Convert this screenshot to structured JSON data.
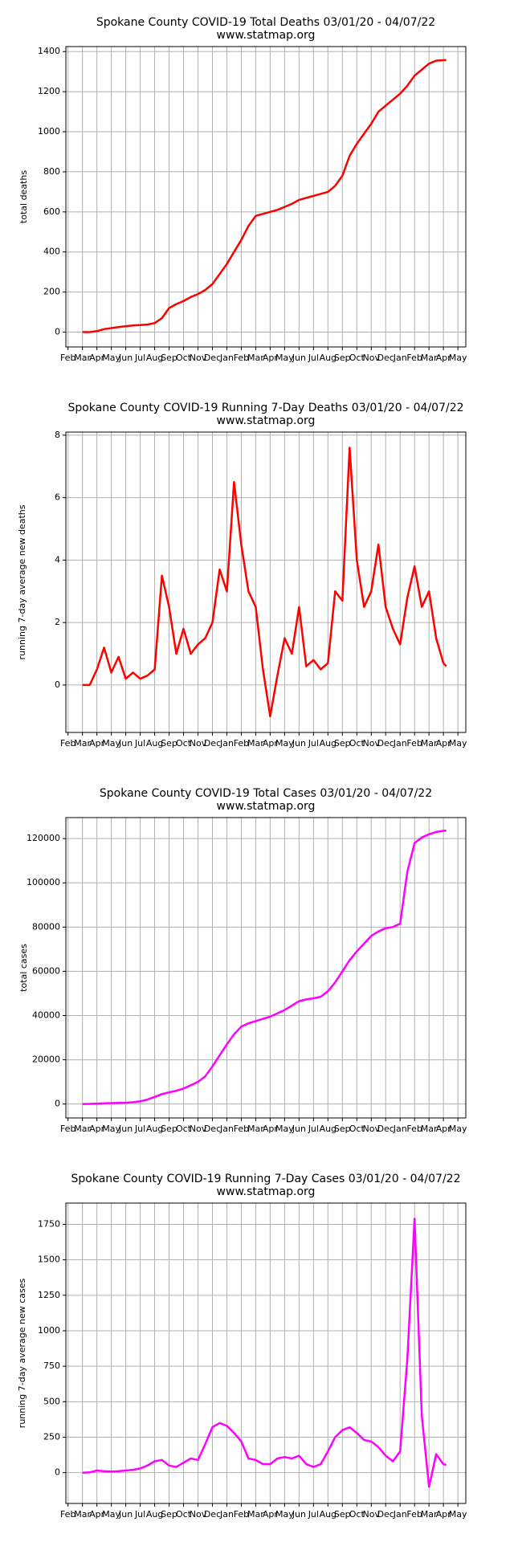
{
  "chart_data": [
    {
      "type": "line",
      "title": "Spokane County COVID-19 Total Deaths 03/01/20 - 04/07/22",
      "subtitle": "www.statmap.org",
      "ylabel": "total deaths",
      "color": "#ff0000",
      "grid": true,
      "x": [
        1,
        1.5,
        2,
        2.5,
        3,
        3.5,
        4,
        4.5,
        5,
        5.5,
        6,
        6.5,
        7,
        7.5,
        8,
        8.5,
        9,
        9.5,
        10,
        10.5,
        11,
        11.5,
        12,
        12.5,
        13,
        13.5,
        14,
        14.5,
        15,
        15.5,
        16,
        16.5,
        17,
        17.5,
        18,
        18.5,
        19,
        19.5,
        20,
        20.5,
        21,
        21.5,
        22,
        22.5,
        23,
        23.5,
        24,
        24.5,
        25,
        25.5,
        26,
        26.2
      ],
      "values": [
        0,
        0,
        5,
        15,
        20,
        25,
        30,
        33,
        35,
        38,
        45,
        70,
        120,
        140,
        155,
        175,
        190,
        210,
        240,
        290,
        340,
        400,
        460,
        530,
        580,
        590,
        600,
        610,
        625,
        640,
        660,
        670,
        680,
        690,
        700,
        730,
        780,
        880,
        940,
        990,
        1040,
        1100,
        1130,
        1160,
        1190,
        1230,
        1280,
        1310,
        1340,
        1355,
        1357,
        1358
      ],
      "xlim": [
        -0.15,
        27.55
      ],
      "ylim": [
        -74,
        1425
      ],
      "yticks": [
        0,
        200,
        400,
        600,
        800,
        1000,
        1200,
        1400
      ],
      "xticks": [
        {
          "value": 0,
          "label": "Feb"
        },
        {
          "value": 1,
          "label": "Mar"
        },
        {
          "value": 2,
          "label": "Apr"
        },
        {
          "value": 3,
          "label": "May"
        },
        {
          "value": 4,
          "label": "Jun"
        },
        {
          "value": 5,
          "label": "Jul"
        },
        {
          "value": 6,
          "label": "Aug"
        },
        {
          "value": 7,
          "label": "Sep"
        },
        {
          "value": 8,
          "label": "Oct"
        },
        {
          "value": 9,
          "label": "Nov"
        },
        {
          "value": 10,
          "label": "Dec"
        },
        {
          "value": 11,
          "label": "Jan"
        },
        {
          "value": 12,
          "label": "Feb"
        },
        {
          "value": 13,
          "label": "Mar"
        },
        {
          "value": 14,
          "label": "Apr"
        },
        {
          "value": 15,
          "label": "May"
        },
        {
          "value": 16,
          "label": "Jun"
        },
        {
          "value": 17,
          "label": "Jul"
        },
        {
          "value": 18,
          "label": "Aug"
        },
        {
          "value": 19,
          "label": "Sep"
        },
        {
          "value": 20,
          "label": "Oct"
        },
        {
          "value": 21,
          "label": "Nov"
        },
        {
          "value": 22,
          "label": "Dec"
        },
        {
          "value": 23,
          "label": "Jan"
        },
        {
          "value": 24,
          "label": "Feb"
        },
        {
          "value": 25,
          "label": "Mar"
        },
        {
          "value": 26,
          "label": "Apr"
        },
        {
          "value": 27,
          "label": "May"
        }
      ]
    },
    {
      "type": "line",
      "title": "Spokane County COVID-19 Running 7-Day Deaths 03/01/20 - 04/07/22",
      "subtitle": "www.statmap.org",
      "ylabel": "running 7-day average new deaths",
      "color": "#ff0000",
      "grid": true,
      "x": [
        1,
        1.5,
        2,
        2.5,
        3,
        3.5,
        4,
        4.5,
        5,
        5.5,
        6,
        6.5,
        7,
        7.5,
        8,
        8.5,
        9,
        9.5,
        10,
        10.5,
        11,
        11.5,
        12,
        12.5,
        13,
        13.5,
        14,
        14.5,
        15,
        15.5,
        16,
        16.5,
        17,
        17.5,
        18,
        18.5,
        19,
        19.5,
        20,
        20.5,
        21,
        21.5,
        22,
        22.5,
        23,
        23.5,
        24,
        24.5,
        25,
        25.5,
        26,
        26.2
      ],
      "values": [
        0,
        0,
        0.5,
        1.2,
        0.4,
        0.9,
        0.2,
        0.4,
        0.2,
        0.3,
        0.5,
        3.5,
        2.5,
        1.0,
        1.8,
        1.0,
        1.3,
        1.5,
        2.0,
        3.7,
        3.0,
        6.5,
        4.5,
        3.0,
        2.5,
        0.5,
        -1,
        0.3,
        1.5,
        1.0,
        2.5,
        0.6,
        0.8,
        0.5,
        0.7,
        3.0,
        2.7,
        7.6,
        4.0,
        2.5,
        3.0,
        4.5,
        2.5,
        1.8,
        1.3,
        2.8,
        3.8,
        2.5,
        3.0,
        1.5,
        0.7,
        0.6
      ],
      "xlim": [
        -0.15,
        27.55
      ],
      "ylim": [
        -1.52,
        8.1
      ],
      "yticks": [
        0,
        2,
        4,
        6,
        8
      ],
      "xticks": [
        {
          "value": 0,
          "label": "Feb"
        },
        {
          "value": 1,
          "label": "Mar"
        },
        {
          "value": 2,
          "label": "Apr"
        },
        {
          "value": 3,
          "label": "May"
        },
        {
          "value": 4,
          "label": "Jun"
        },
        {
          "value": 5,
          "label": "Jul"
        },
        {
          "value": 6,
          "label": "Aug"
        },
        {
          "value": 7,
          "label": "Sep"
        },
        {
          "value": 8,
          "label": "Oct"
        },
        {
          "value": 9,
          "label": "Nov"
        },
        {
          "value": 10,
          "label": "Dec"
        },
        {
          "value": 11,
          "label": "Jan"
        },
        {
          "value": 12,
          "label": "Feb"
        },
        {
          "value": 13,
          "label": "Mar"
        },
        {
          "value": 14,
          "label": "Apr"
        },
        {
          "value": 15,
          "label": "May"
        },
        {
          "value": 16,
          "label": "Jun"
        },
        {
          "value": 17,
          "label": "Jul"
        },
        {
          "value": 18,
          "label": "Aug"
        },
        {
          "value": 19,
          "label": "Sep"
        },
        {
          "value": 20,
          "label": "Oct"
        },
        {
          "value": 21,
          "label": "Nov"
        },
        {
          "value": 22,
          "label": "Dec"
        },
        {
          "value": 23,
          "label": "Jan"
        },
        {
          "value": 24,
          "label": "Feb"
        },
        {
          "value": 25,
          "label": "Mar"
        },
        {
          "value": 26,
          "label": "Apr"
        },
        {
          "value": 27,
          "label": "May"
        }
      ]
    },
    {
      "type": "line",
      "title": "Spokane County COVID-19 Total Cases 03/01/20 - 04/07/22",
      "subtitle": "www.statmap.org",
      "ylabel": "total cases",
      "color": "#ff00ff",
      "grid": true,
      "x": [
        1,
        1.5,
        2,
        2.5,
        3,
        3.5,
        4,
        4.5,
        5,
        5.5,
        6,
        6.5,
        7,
        7.5,
        8,
        8.5,
        9,
        9.5,
        10,
        10.5,
        11,
        11.5,
        12,
        12.5,
        13,
        13.5,
        14,
        14.5,
        15,
        15.5,
        16,
        16.5,
        17,
        17.5,
        18,
        18.5,
        19,
        19.5,
        20,
        20.5,
        21,
        21.5,
        22,
        22.5,
        23,
        23.5,
        24,
        24.5,
        25,
        25.5,
        26,
        26.2
      ],
      "values": [
        0,
        50,
        200,
        300,
        400,
        500,
        600,
        800,
        1200,
        2000,
        3200,
        4500,
        5300,
        6000,
        7000,
        8500,
        10000,
        12500,
        17000,
        22000,
        27000,
        31500,
        35000,
        36500,
        37500,
        38500,
        39500,
        41000,
        42500,
        44500,
        46500,
        47300,
        47800,
        48500,
        51000,
        55000,
        60000,
        65000,
        69000,
        72500,
        76000,
        78000,
        79500,
        80000,
        81500,
        105000,
        118000,
        120500,
        122000,
        123000,
        123500,
        123600
      ],
      "xlim": [
        -0.15,
        27.55
      ],
      "ylim": [
        -6300,
        129500
      ],
      "yticks": [
        0,
        20000,
        40000,
        60000,
        80000,
        100000,
        120000
      ],
      "xticks": [
        {
          "value": 0,
          "label": "Feb"
        },
        {
          "value": 1,
          "label": "Mar"
        },
        {
          "value": 2,
          "label": "Apr"
        },
        {
          "value": 3,
          "label": "May"
        },
        {
          "value": 4,
          "label": "Jun"
        },
        {
          "value": 5,
          "label": "Jul"
        },
        {
          "value": 6,
          "label": "Aug"
        },
        {
          "value": 7,
          "label": "Sep"
        },
        {
          "value": 8,
          "label": "Oct"
        },
        {
          "value": 9,
          "label": "Nov"
        },
        {
          "value": 10,
          "label": "Dec"
        },
        {
          "value": 11,
          "label": "Jan"
        },
        {
          "value": 12,
          "label": "Feb"
        },
        {
          "value": 13,
          "label": "Mar"
        },
        {
          "value": 14,
          "label": "Apr"
        },
        {
          "value": 15,
          "label": "May"
        },
        {
          "value": 16,
          "label": "Jun"
        },
        {
          "value": 17,
          "label": "Jul"
        },
        {
          "value": 18,
          "label": "Aug"
        },
        {
          "value": 19,
          "label": "Sep"
        },
        {
          "value": 20,
          "label": "Oct"
        },
        {
          "value": 21,
          "label": "Nov"
        },
        {
          "value": 22,
          "label": "Dec"
        },
        {
          "value": 23,
          "label": "Jan"
        },
        {
          "value": 24,
          "label": "Feb"
        },
        {
          "value": 25,
          "label": "Mar"
        },
        {
          "value": 26,
          "label": "Apr"
        },
        {
          "value": 27,
          "label": "May"
        }
      ]
    },
    {
      "type": "line",
      "title": "Spokane County COVID-19 Running 7-Day Cases 03/01/20 - 04/07/22",
      "subtitle": "www.statmap.org",
      "ylabel": "running 7-day average new cases",
      "color": "#ff00ff",
      "grid": true,
      "x": [
        1,
        1.5,
        2,
        2.5,
        3,
        3.5,
        4,
        4.5,
        5,
        5.5,
        6,
        6.5,
        7,
        7.5,
        8,
        8.5,
        9,
        9.5,
        10,
        10.5,
        11,
        11.5,
        12,
        12.5,
        13,
        13.5,
        14,
        14.5,
        15,
        15.5,
        16,
        16.5,
        17,
        17.5,
        18,
        18.5,
        19,
        19.5,
        20,
        20.5,
        21,
        21.5,
        22,
        22.5,
        23,
        23.5,
        24,
        24.5,
        25,
        25.5,
        26,
        26.2
      ],
      "values": [
        0,
        2,
        15,
        10,
        8,
        10,
        15,
        20,
        30,
        50,
        80,
        90,
        50,
        40,
        70,
        100,
        90,
        200,
        320,
        350,
        330,
        280,
        220,
        100,
        90,
        60,
        60,
        100,
        110,
        100,
        120,
        60,
        40,
        60,
        150,
        250,
        300,
        320,
        280,
        230,
        220,
        180,
        120,
        80,
        150,
        800,
        1790,
        400,
        -100,
        130,
        60,
        55
      ],
      "xlim": [
        -0.15,
        27.55
      ],
      "ylim": [
        -217,
        1900
      ],
      "yticks": [
        0,
        250,
        500,
        750,
        1000,
        1250,
        1500,
        1750
      ],
      "xticks": [
        {
          "value": 0,
          "label": "Feb"
        },
        {
          "value": 1,
          "label": "Mar"
        },
        {
          "value": 2,
          "label": "Apr"
        },
        {
          "value": 3,
          "label": "May"
        },
        {
          "value": 4,
          "label": "Jun"
        },
        {
          "value": 5,
          "label": "Jul"
        },
        {
          "value": 6,
          "label": "Aug"
        },
        {
          "value": 7,
          "label": "Sep"
        },
        {
          "value": 8,
          "label": "Oct"
        },
        {
          "value": 9,
          "label": "Nov"
        },
        {
          "value": 10,
          "label": "Dec"
        },
        {
          "value": 11,
          "label": "Jan"
        },
        {
          "value": 12,
          "label": "Feb"
        },
        {
          "value": 13,
          "label": "Mar"
        },
        {
          "value": 14,
          "label": "Apr"
        },
        {
          "value": 15,
          "label": "May"
        },
        {
          "value": 16,
          "label": "Jun"
        },
        {
          "value": 17,
          "label": "Jul"
        },
        {
          "value": 18,
          "label": "Aug"
        },
        {
          "value": 19,
          "label": "Sep"
        },
        {
          "value": 20,
          "label": "Oct"
        },
        {
          "value": 21,
          "label": "Nov"
        },
        {
          "value": 22,
          "label": "Dec"
        },
        {
          "value": 23,
          "label": "Jan"
        },
        {
          "value": 24,
          "label": "Feb"
        },
        {
          "value": 25,
          "label": "Mar"
        },
        {
          "value": 26,
          "label": "Apr"
        },
        {
          "value": 27,
          "label": "May"
        }
      ]
    }
  ]
}
